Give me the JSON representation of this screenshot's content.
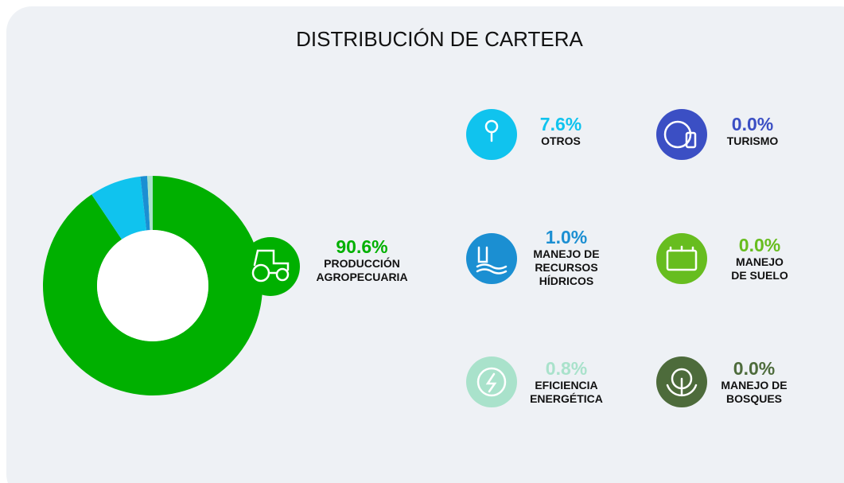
{
  "chart_data": {
    "type": "pie",
    "donut": true,
    "title": "DISTRIBUCIÓN DE CARTERA",
    "categories": [
      "PRODUCCIÓN AGROPECUARIA",
      "OTROS",
      "MANEJO DE RECURSOS HÍDRICOS",
      "EFICIENCIA ENERGÉTICA",
      "TURISMO",
      "MANEJO DE SUELO",
      "MANEJO DE BOSQUES"
    ],
    "values": [
      90.6,
      7.6,
      1.0,
      0.8,
      0.0,
      0.0,
      0.0
    ],
    "value_labels": [
      "90.6%",
      "7.6%",
      "1.0%",
      "0.8%",
      "0.0%",
      "0.0%",
      "0.0%"
    ],
    "colors": [
      "#00b000",
      "#10c3ee",
      "#1b8fd2",
      "#a9e2cb",
      "#3b4fc4",
      "#67bd1f",
      "#4d6b3b"
    ]
  }
}
